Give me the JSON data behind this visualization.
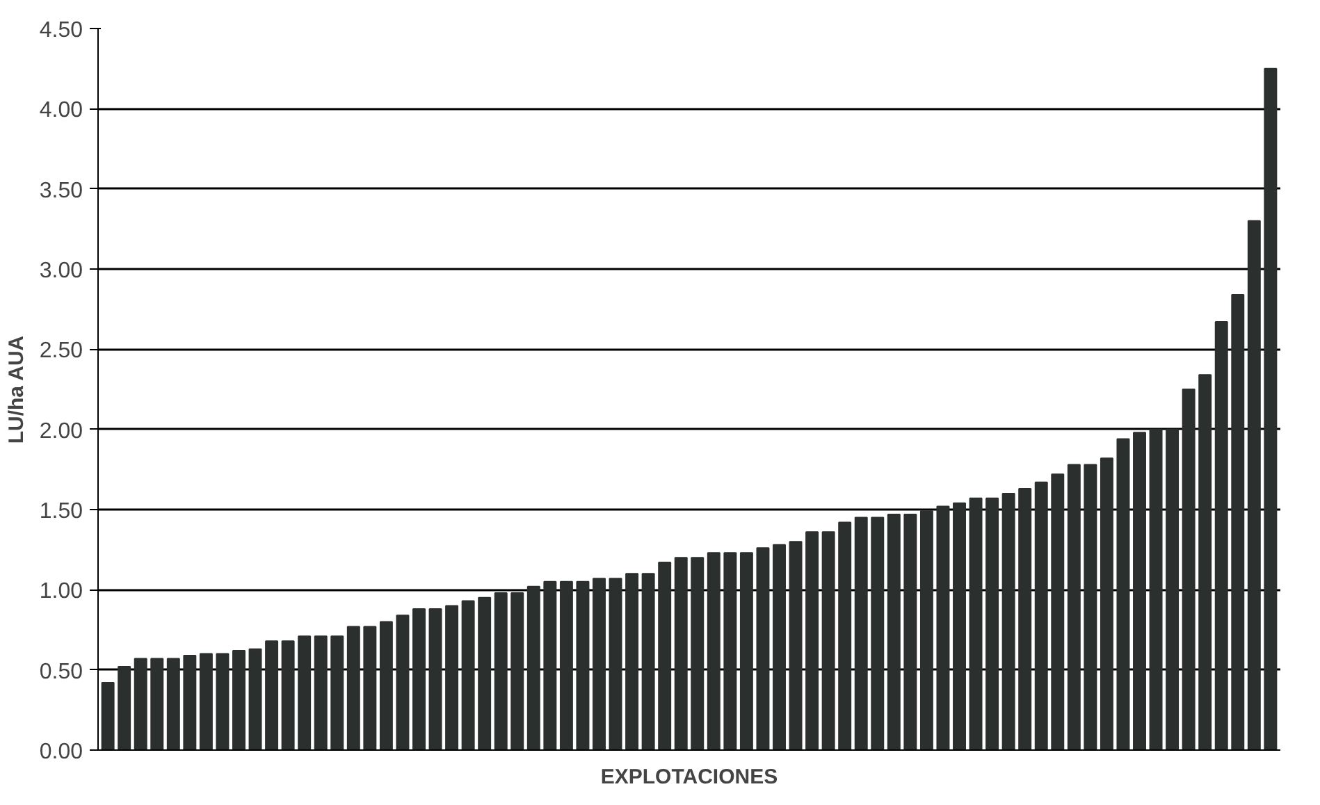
{
  "chart_data": {
    "type": "bar",
    "xlabel": "EXPLOTACIONES",
    "ylabel": "LU/ha AUA",
    "categories": [
      null,
      null,
      null,
      null,
      null,
      null,
      null,
      null,
      null,
      null,
      null,
      null,
      null,
      null,
      null,
      null,
      null,
      null,
      null,
      null,
      null,
      null,
      null,
      null,
      null,
      null,
      null,
      null,
      null,
      null,
      null,
      null,
      null,
      null,
      null,
      null,
      null,
      null,
      null,
      null,
      null,
      null,
      null,
      null,
      null,
      null,
      null,
      null,
      null,
      null,
      null,
      null,
      null,
      null,
      null,
      null,
      null,
      null,
      null,
      null,
      null,
      null,
      null,
      null,
      null,
      null,
      null,
      null,
      null,
      null,
      null,
      null
    ],
    "values": [
      0.42,
      0.52,
      0.57,
      0.57,
      0.57,
      0.59,
      0.6,
      0.6,
      0.62,
      0.63,
      0.68,
      0.68,
      0.71,
      0.71,
      0.71,
      0.77,
      0.77,
      0.8,
      0.84,
      0.88,
      0.88,
      0.9,
      0.93,
      0.95,
      0.98,
      0.98,
      1.02,
      1.05,
      1.05,
      1.05,
      1.07,
      1.07,
      1.1,
      1.1,
      1.17,
      1.2,
      1.2,
      1.23,
      1.23,
      1.23,
      1.26,
      1.28,
      1.3,
      1.36,
      1.36,
      1.42,
      1.45,
      1.45,
      1.47,
      1.47,
      1.49,
      1.52,
      1.54,
      1.57,
      1.57,
      1.6,
      1.63,
      1.67,
      1.72,
      1.78,
      1.78,
      1.82,
      1.94,
      1.98,
      2.0,
      2.0,
      2.25,
      2.34,
      2.67,
      2.84,
      3.3,
      4.25
    ],
    "color": "#2b2f2d",
    "ylim": [
      0,
      4.5
    ],
    "yticks": [
      {
        "value": 0,
        "label": "0.00"
      },
      {
        "value": 0.5,
        "label": "0.50"
      },
      {
        "value": 1,
        "label": "1.00"
      },
      {
        "value": 1.5,
        "label": "1.50"
      },
      {
        "value": 2,
        "label": "2.00"
      },
      {
        "value": 2.5,
        "label": "2.50"
      },
      {
        "value": 3,
        "label": "3.00"
      },
      {
        "value": 3.5,
        "label": "3.50"
      },
      {
        "value": 4,
        "label": "4.00"
      },
      {
        "value": 4.5,
        "label": "4.50"
      }
    ],
    "grid": "y"
  }
}
